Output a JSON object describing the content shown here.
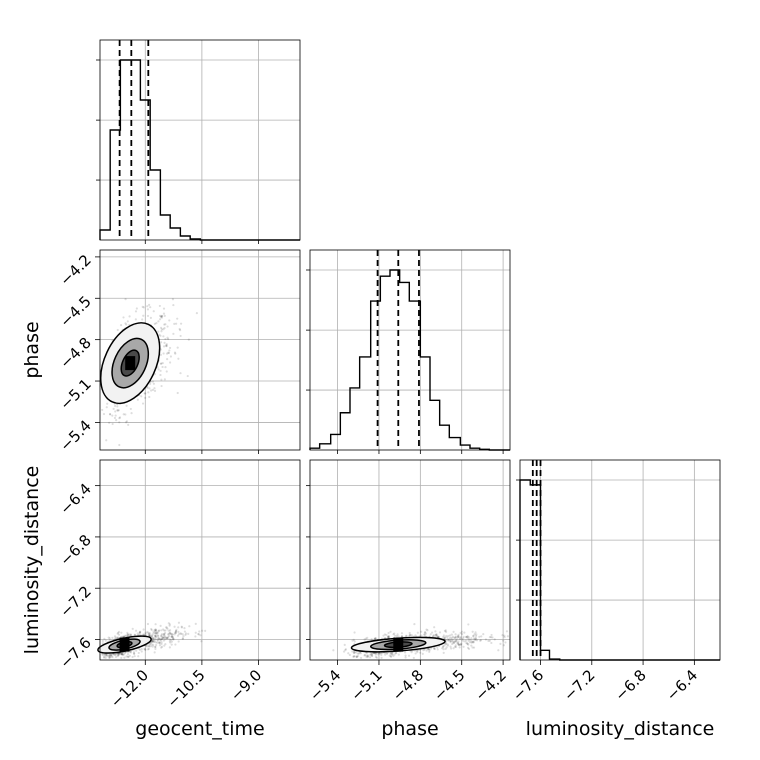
{
  "chart_data": {
    "type": "corner",
    "parameters": [
      "geocent_time",
      "phase",
      "luminosity_distance"
    ],
    "axes": {
      "geocent_time": {
        "range": [
          -13.2,
          -7.9
        ],
        "ticks": [
          -12.0,
          -10.5,
          -9.0
        ],
        "tick_labels": [
          "−12.0",
          "−10.5",
          "−9.0"
        ]
      },
      "phase": {
        "range": [
          -5.6,
          -4.15
        ],
        "ticks": [
          -5.4,
          -5.1,
          -4.8,
          -4.5,
          -4.2
        ],
        "tick_labels": [
          "−5.4",
          "−5.1",
          "−4.8",
          "−4.5",
          "−4.2"
        ]
      },
      "luminosity_distance": {
        "range": [
          -7.76,
          -6.2
        ],
        "ticks": [
          -7.6,
          -7.2,
          -6.8,
          -6.4
        ],
        "tick_labels": [
          "−7.6",
          "−7.2",
          "−6.8",
          "−6.4"
        ]
      }
    },
    "marginals": {
      "geocent_time": {
        "bin_edges": [
          -13.2,
          -12.93,
          -12.66,
          -12.4,
          -12.13,
          -11.87,
          -11.6,
          -11.34,
          -11.07,
          -10.81,
          -10.54,
          -10.28,
          -10.01,
          -9.75,
          -9.48,
          -9.22,
          -8.95,
          -8.69,
          -8.42,
          -8.16,
          -7.9
        ],
        "counts": [
          10,
          110,
          180,
          180,
          140,
          70,
          25,
          12,
          4,
          1,
          0,
          0,
          0,
          0,
          0,
          0,
          0,
          0,
          0,
          0
        ],
        "quantiles": [
          -12.68,
          -12.37,
          -11.92
        ]
      },
      "phase": {
        "bin_edges": [
          -5.6,
          -5.53,
          -5.45,
          -5.38,
          -5.31,
          -5.24,
          -5.16,
          -5.09,
          -5.02,
          -4.95,
          -4.88,
          -4.8,
          -4.73,
          -4.66,
          -4.59,
          -4.51,
          -4.44,
          -4.37,
          -4.3,
          -4.22,
          -4.15
        ],
        "counts": [
          3,
          10,
          25,
          60,
          100,
          150,
          240,
          280,
          290,
          270,
          240,
          150,
          80,
          40,
          20,
          8,
          3,
          1,
          0,
          0
        ],
        "quantiles": [
          -5.11,
          -4.96,
          -4.81
        ]
      },
      "luminosity_distance": {
        "bin_edges": [
          -7.76,
          -7.68,
          -7.6,
          -7.53,
          -7.45,
          -7.37,
          -7.29,
          -7.21,
          -7.14,
          -7.06,
          -6.98,
          -6.9,
          -6.82,
          -6.75,
          -6.67,
          -6.59,
          -6.51,
          -6.43,
          -6.36,
          -6.28,
          -6.2
        ],
        "counts": [
          185,
          180,
          10,
          1,
          0,
          0,
          0,
          0,
          0,
          0,
          0,
          0,
          0,
          0,
          0,
          0,
          0,
          0,
          0,
          0
        ],
        "quantiles": [
          -7.66,
          -7.63,
          -7.6
        ]
      }
    },
    "joint": [
      {
        "x": "geocent_time",
        "y": "phase",
        "center": [
          -12.4,
          -4.97
        ],
        "spread": [
          0.35,
          0.17
        ],
        "correlation": 0.45,
        "contours": [
          [
            0.2,
            0.1
          ],
          [
            0.42,
            0.19
          ],
          [
            0.68,
            0.31
          ]
        ]
      },
      {
        "x": "geocent_time",
        "y": "luminosity_distance",
        "center": [
          -12.55,
          -7.64
        ],
        "spread": [
          0.45,
          0.06
        ],
        "correlation": 0.7,
        "contours": [
          [
            0.2,
            0.02
          ],
          [
            0.42,
            0.035
          ],
          [
            0.72,
            0.05
          ]
        ]
      },
      {
        "x": "phase",
        "y": "luminosity_distance",
        "center": [
          -4.96,
          -7.64
        ],
        "spread": [
          0.2,
          0.05
        ],
        "correlation": 0.55,
        "contours": [
          [
            0.1,
            0.02
          ],
          [
            0.2,
            0.035
          ],
          [
            0.34,
            0.05
          ]
        ]
      }
    ],
    "grid": true
  }
}
